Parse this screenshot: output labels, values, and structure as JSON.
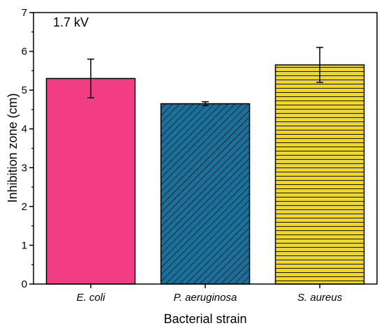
{
  "chart_data": {
    "type": "bar",
    "annotation": "1.7 kV",
    "xlabel": "Bacterial strain",
    "ylabel": "Inhibition zone (cm)",
    "ylim": [
      0,
      7
    ],
    "yticks": [
      0,
      1,
      2,
      3,
      4,
      5,
      6,
      7
    ],
    "categories": [
      "E. coli",
      "P. aeruginosa",
      "S. aureus"
    ],
    "values": [
      5.3,
      4.65,
      5.65
    ],
    "error_low": [
      4.8,
      4.6,
      5.2
    ],
    "error_high": [
      5.8,
      4.7,
      6.1
    ],
    "colors": [
      "#f23d84",
      "#1b6f99",
      "#f5d90f"
    ],
    "patterns": [
      "solid",
      "diagonal-hatch",
      "horizontal-lines"
    ],
    "grid": false,
    "legend": "none"
  }
}
